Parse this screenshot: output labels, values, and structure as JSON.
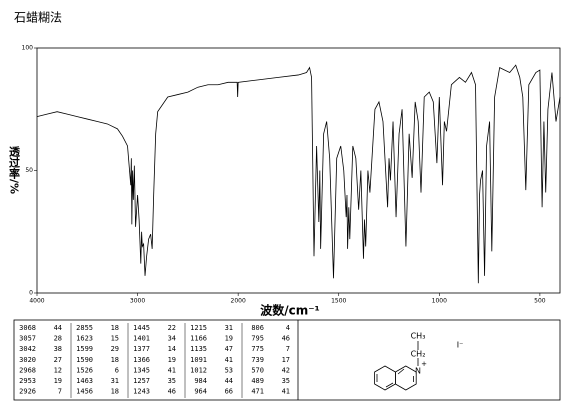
{
  "chart_data": {
    "type": "line",
    "title": "石蜡糊法",
    "x_label": "波数/cm⁻¹",
    "y_label": "透过率/%",
    "color": "#000000",
    "xlim": [
      4000,
      400
    ],
    "xticks": [
      4000,
      3000,
      2000,
      1500,
      1000,
      500
    ],
    "ylim": [
      0,
      100
    ],
    "yticks": [
      0,
      50,
      100
    ],
    "x": [
      4000,
      3900,
      3800,
      3700,
      3600,
      3500,
      3400,
      3300,
      3200,
      3150,
      3100,
      3068,
      3062,
      3057,
      3050,
      3042,
      3032,
      3020,
      3000,
      2985,
      2968,
      2960,
      2953,
      2940,
      2926,
      2910,
      2890,
      2870,
      2855,
      2840,
      2820,
      2800,
      2700,
      2600,
      2500,
      2400,
      2300,
      2200,
      2100,
      2050,
      2010,
      2005,
      2000,
      1900,
      1800,
      1700,
      1660,
      1645,
      1635,
      1623,
      1610,
      1599,
      1594,
      1590,
      1575,
      1560,
      1545,
      1526,
      1510,
      1490,
      1475,
      1463,
      1459,
      1456,
      1450,
      1445,
      1430,
      1415,
      1401,
      1390,
      1377,
      1372,
      1366,
      1355,
      1345,
      1320,
      1300,
      1280,
      1257,
      1250,
      1243,
      1230,
      1215,
      1200,
      1185,
      1166,
      1150,
      1135,
      1120,
      1105,
      1091,
      1075,
      1050,
      1030,
      1012,
      1000,
      984,
      975,
      964,
      940,
      900,
      870,
      840,
      820,
      806,
      800,
      795,
      785,
      775,
      765,
      750,
      739,
      725,
      700,
      650,
      620,
      600,
      585,
      570,
      555,
      520,
      500,
      489,
      480,
      471,
      460,
      440,
      420,
      400
    ],
    "values": [
      72,
      73,
      74,
      73,
      72,
      71,
      70,
      69,
      67,
      64,
      60,
      44,
      55,
      28,
      50,
      38,
      52,
      27,
      40,
      30,
      12,
      25,
      19,
      20,
      7,
      15,
      22,
      24,
      18,
      40,
      65,
      74,
      80,
      81,
      82,
      84,
      85,
      85,
      86,
      86,
      86,
      80,
      86,
      87,
      88,
      89,
      90,
      92,
      88,
      15,
      60,
      29,
      50,
      18,
      65,
      70,
      55,
      6,
      55,
      60,
      50,
      31,
      40,
      18,
      35,
      22,
      60,
      55,
      34,
      50,
      14,
      30,
      19,
      50,
      41,
      75,
      78,
      70,
      35,
      55,
      46,
      70,
      31,
      65,
      75,
      19,
      65,
      47,
      78,
      70,
      41,
      80,
      82,
      78,
      53,
      80,
      44,
      70,
      66,
      85,
      88,
      86,
      90,
      85,
      4,
      40,
      46,
      50,
      7,
      60,
      70,
      17,
      80,
      92,
      90,
      93,
      88,
      80,
      42,
      85,
      90,
      91,
      35,
      70,
      41,
      75,
      90,
      70,
      80
    ]
  },
  "peak_table": {
    "rows": [
      [
        3068,
        44,
        2855,
        18,
        1445,
        22,
        1215,
        31,
        806,
        4
      ],
      [
        3057,
        28,
        1623,
        15,
        1401,
        34,
        1166,
        19,
        795,
        46
      ],
      [
        3042,
        38,
        1599,
        29,
        1377,
        14,
        1135,
        47,
        775,
        7
      ],
      [
        3020,
        27,
        1590,
        18,
        1366,
        19,
        1091,
        41,
        739,
        17
      ],
      [
        2968,
        12,
        1526,
        6,
        1345,
        41,
        1012,
        53,
        570,
        42
      ],
      [
        2953,
        19,
        1463,
        31,
        1257,
        35,
        984,
        44,
        489,
        35
      ],
      [
        2926,
        7,
        1456,
        18,
        1243,
        46,
        964,
        66,
        471,
        41
      ]
    ]
  },
  "structure": {
    "labels": [
      "CH₃",
      "CH₂",
      "N",
      "+",
      "I⁻"
    ]
  }
}
